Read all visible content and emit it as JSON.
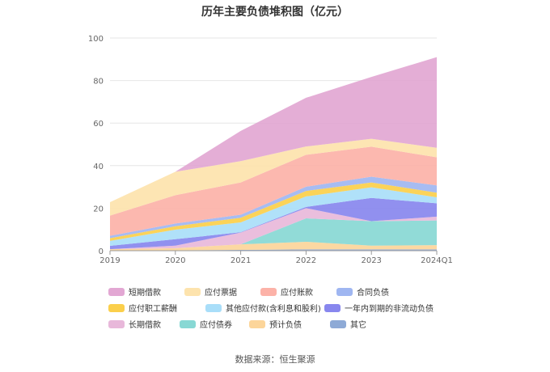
{
  "chart_data": {
    "type": "area",
    "stacked": true,
    "title": "历年主要负债堆积图（亿元）",
    "source_label": "数据来源：恒生聚源",
    "categories": [
      "2019",
      "2020",
      "2021",
      "2022",
      "2023",
      "2024Q1"
    ],
    "ylim": [
      0,
      100
    ],
    "yticks": [
      0,
      20,
      40,
      60,
      80,
      100
    ],
    "grid": true,
    "legend_position": "bottom",
    "series": [
      {
        "name": "其它",
        "color": "#8eaad6",
        "values": [
          0.1,
          0.2,
          0.4,
          0.6,
          0.6,
          0.6
        ]
      },
      {
        "name": "预计负债",
        "color": "#fcd59a",
        "values": [
          0.6,
          1.0,
          2.6,
          3.6,
          1.8,
          2.0
        ]
      },
      {
        "name": "应付债券",
        "color": "#88d8d4",
        "values": [
          0,
          0,
          0,
          11.0,
          11.5,
          11.6
        ]
      },
      {
        "name": "长期借款",
        "color": "#e8b8da",
        "values": [
          0,
          1.2,
          5.5,
          4.8,
          0,
          1.8
        ]
      },
      {
        "name": "一年内到期的非流动负债",
        "color": "#8887ee",
        "values": [
          1.6,
          3.0,
          0.2,
          0.6,
          10.9,
          6.3
        ]
      },
      {
        "name": "其他应付款(含利息和股利)",
        "color": "#a9def9",
        "values": [
          2.3,
          4.5,
          4.6,
          4.9,
          5.0,
          2.8
        ]
      },
      {
        "name": "应付职工薪酬",
        "color": "#fbcf4b",
        "values": [
          1.3,
          1.6,
          2.2,
          2.6,
          2.3,
          2.2
        ]
      },
      {
        "name": "合同负债",
        "color": "#9fb6f1",
        "values": [
          1.1,
          1.3,
          1.4,
          2.0,
          2.7,
          3.4
        ]
      },
      {
        "name": "应付账款",
        "color": "#fcb2a8",
        "values": [
          9.5,
          13.3,
          15.2,
          15.0,
          14.1,
          13.2
        ]
      },
      {
        "name": "应付票据",
        "color": "#fde3ad",
        "values": [
          6.3,
          11.0,
          10.0,
          3.9,
          3.7,
          4.5
        ]
      },
      {
        "name": "短期借款",
        "color": "#e2a7d3",
        "values": [
          0,
          0,
          14.2,
          22.9,
          29.1,
          42.6
        ]
      }
    ]
  },
  "legend_order": [
    "短期借款",
    "应付票据",
    "应付账款",
    "合同负债",
    "应付职工薪酬",
    "其他应付款(含利息和股利)",
    "一年内到期的非流动负债",
    "长期借款",
    "应付债券",
    "预计负债",
    "其它"
  ]
}
